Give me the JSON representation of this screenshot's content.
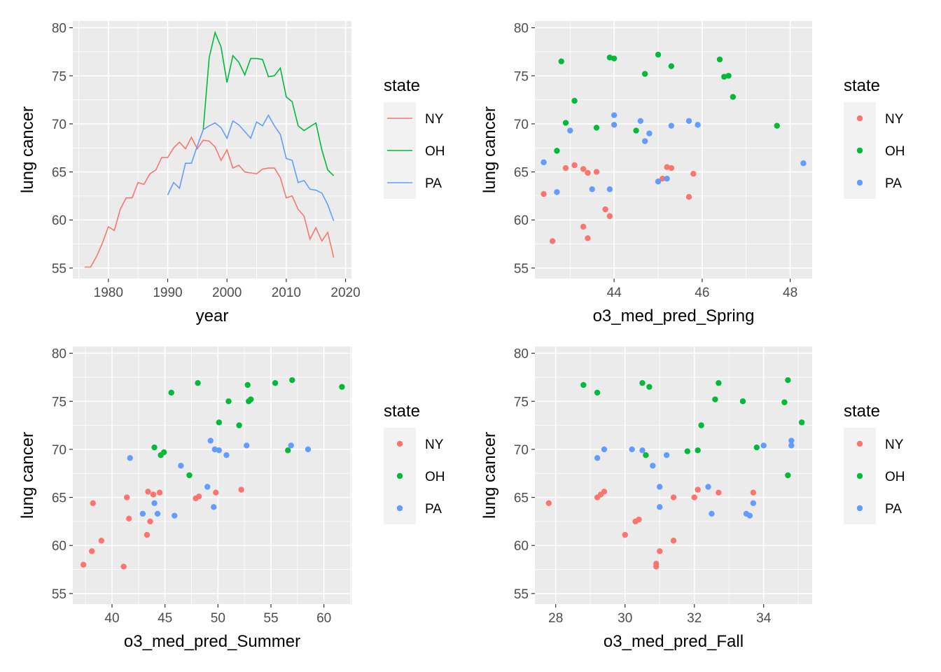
{
  "chart_data": [
    {
      "type": "line",
      "xlabel": "year",
      "ylabel": "lung cancer",
      "xlim": [
        1974,
        2021
      ],
      "ylim": [
        53.9,
        80.7
      ],
      "xticks": [
        1980,
        1990,
        2000,
        2010,
        2020
      ],
      "yticks": [
        55,
        60,
        65,
        70,
        75,
        80
      ],
      "legend_title": "state",
      "legend_placement": "right",
      "series": [
        {
          "name": "NY",
          "color": "#F8766D",
          "x": [
            1976,
            1977,
            1978,
            1979,
            1980,
            1981,
            1982,
            1983,
            1984,
            1985,
            1986,
            1987,
            1988,
            1989,
            1990,
            1991,
            1992,
            1993,
            1994,
            1995,
            1996,
            1997,
            1998,
            1999,
            2000,
            2001,
            2002,
            2003,
            2004,
            2005,
            2006,
            2007,
            2008,
            2009,
            2010,
            2011,
            2012,
            2013,
            2014,
            2015,
            2016,
            2017,
            2018
          ],
          "y": [
            55.1,
            55.1,
            56.2,
            57.6,
            59.3,
            58.9,
            61.1,
            62.3,
            62.3,
            63.9,
            63.7,
            64.8,
            65.2,
            66.5,
            66.5,
            67.5,
            68.1,
            67.4,
            68.6,
            67.4,
            68.3,
            68.2,
            67.6,
            66.2,
            67.3,
            65.4,
            65.7,
            65.0,
            64.9,
            64.8,
            65.3,
            65.4,
            65.4,
            64.4,
            62.3,
            62.5,
            61.1,
            60.4,
            58.0,
            59.2,
            57.8,
            58.7,
            56.1
          ]
        },
        {
          "name": "OH",
          "color": "#00BA38",
          "x": [
            1996,
            1997,
            1998,
            1999,
            2000,
            2001,
            2002,
            2003,
            2004,
            2005,
            2006,
            2007,
            2008,
            2009,
            2010,
            2011,
            2012,
            2013,
            2014,
            2015,
            2016,
            2017,
            2018
          ],
          "y": [
            69.4,
            76.9,
            79.5,
            78.0,
            74.3,
            77.1,
            76.4,
            75.1,
            76.8,
            76.8,
            76.7,
            74.9,
            75.0,
            75.8,
            72.8,
            72.3,
            69.8,
            69.3,
            69.7,
            70.1,
            67.3,
            65.2,
            64.6
          ]
        },
        {
          "name": "PA",
          "color": "#619CFF",
          "x": [
            1990,
            1991,
            1992,
            1993,
            1994,
            1995,
            1996,
            1997,
            1998,
            1999,
            2000,
            2001,
            2002,
            2003,
            2004,
            2005,
            2006,
            2007,
            2008,
            2009,
            2010,
            2011,
            2012,
            2013,
            2014,
            2015,
            2016,
            2017,
            2018
          ],
          "y": [
            62.6,
            63.9,
            63.3,
            65.9,
            65.9,
            67.7,
            69.4,
            69.8,
            70.1,
            69.6,
            68.5,
            70.3,
            69.9,
            69.2,
            68.5,
            70.2,
            69.8,
            70.9,
            69.8,
            68.9,
            66.4,
            66.2,
            63.9,
            64.1,
            63.2,
            63.1,
            62.8,
            61.6,
            59.9
          ]
        }
      ]
    },
    {
      "type": "scatter",
      "xlabel": "o3_med_pred_Spring",
      "ylabel": "lung cancer",
      "xlim": [
        42.2,
        48.5
      ],
      "ylim": [
        53.9,
        80.7
      ],
      "xticks": [
        44,
        46,
        48
      ],
      "yticks": [
        55,
        60,
        65,
        70,
        75,
        80
      ],
      "legend_title": "state",
      "legend_placement": "right",
      "series": [
        {
          "name": "NY",
          "color": "#F8766D",
          "points": [
            [
              42.4,
              62.7
            ],
            [
              42.6,
              57.8
            ],
            [
              42.9,
              65.4
            ],
            [
              43.1,
              65.7
            ],
            [
              43.3,
              65.3
            ],
            [
              43.3,
              59.3
            ],
            [
              43.4,
              58.1
            ],
            [
              43.4,
              64.9
            ],
            [
              43.6,
              65.0
            ],
            [
              43.8,
              61.1
            ],
            [
              43.9,
              60.4
            ],
            [
              45.0,
              64.0
            ],
            [
              45.1,
              64.3
            ],
            [
              45.2,
              65.5
            ],
            [
              45.3,
              65.4
            ],
            [
              45.7,
              62.4
            ],
            [
              45.8,
              64.8
            ]
          ]
        },
        {
          "name": "OH",
          "color": "#00BA38",
          "points": [
            [
              42.7,
              67.2
            ],
            [
              42.8,
              76.5
            ],
            [
              42.9,
              70.1
            ],
            [
              43.1,
              72.4
            ],
            [
              43.6,
              69.6
            ],
            [
              43.9,
              76.9
            ],
            [
              44.0,
              76.8
            ],
            [
              44.5,
              69.3
            ],
            [
              44.7,
              75.2
            ],
            [
              45.0,
              77.2
            ],
            [
              45.3,
              76.0
            ],
            [
              46.4,
              76.7
            ],
            [
              46.5,
              74.9
            ],
            [
              46.6,
              75.0
            ],
            [
              46.7,
              72.8
            ],
            [
              47.7,
              69.8
            ]
          ]
        },
        {
          "name": "PA",
          "color": "#619CFF",
          "points": [
            [
              42.4,
              66.0
            ],
            [
              42.7,
              62.9
            ],
            [
              43.0,
              69.3
            ],
            [
              43.5,
              63.2
            ],
            [
              43.9,
              63.2
            ],
            [
              44.0,
              69.9
            ],
            [
              44.0,
              70.9
            ],
            [
              44.6,
              70.3
            ],
            [
              44.7,
              68.2
            ],
            [
              44.8,
              69.0
            ],
            [
              45.0,
              64.0
            ],
            [
              45.2,
              64.3
            ],
            [
              45.3,
              69.8
            ],
            [
              45.7,
              70.3
            ],
            [
              45.9,
              69.9
            ],
            [
              48.3,
              65.9
            ]
          ]
        }
      ]
    },
    {
      "type": "scatter",
      "xlabel": "o3_med_pred_Summer",
      "ylabel": "lung cancer",
      "xlim": [
        36.3,
        62.6
      ],
      "ylim": [
        53.9,
        80.7
      ],
      "xticks": [
        40,
        45,
        50,
        55,
        60
      ],
      "yticks": [
        55,
        60,
        65,
        70,
        75,
        80
      ],
      "legend_title": "state",
      "legend_placement": "right",
      "series": [
        {
          "name": "NY",
          "color": "#F8766D",
          "points": [
            [
              37.3,
              58.0
            ],
            [
              38.1,
              59.4
            ],
            [
              38.2,
              64.4
            ],
            [
              39.0,
              60.5
            ],
            [
              41.1,
              57.8
            ],
            [
              41.4,
              65.0
            ],
            [
              41.6,
              62.8
            ],
            [
              43.3,
              61.1
            ],
            [
              43.4,
              65.6
            ],
            [
              43.6,
              62.5
            ],
            [
              43.9,
              65.3
            ],
            [
              44.5,
              65.5
            ],
            [
              47.9,
              64.9
            ],
            [
              48.2,
              65.1
            ],
            [
              49.8,
              65.5
            ],
            [
              52.2,
              65.8
            ]
          ]
        },
        {
          "name": "OH",
          "color": "#00BA38",
          "points": [
            [
              44.0,
              70.2
            ],
            [
              44.6,
              69.4
            ],
            [
              44.9,
              69.7
            ],
            [
              45.6,
              75.9
            ],
            [
              47.3,
              67.3
            ],
            [
              48.1,
              76.9
            ],
            [
              50.1,
              72.8
            ],
            [
              51.0,
              75.0
            ],
            [
              52.0,
              72.5
            ],
            [
              52.8,
              76.7
            ],
            [
              52.9,
              75.0
            ],
            [
              53.1,
              75.2
            ],
            [
              55.4,
              76.9
            ],
            [
              56.6,
              69.9
            ],
            [
              57.0,
              77.2
            ],
            [
              61.7,
              76.5
            ]
          ]
        },
        {
          "name": "PA",
          "color": "#619CFF",
          "points": [
            [
              41.7,
              69.1
            ],
            [
              42.9,
              63.3
            ],
            [
              44.0,
              64.4
            ],
            [
              44.3,
              63.3
            ],
            [
              45.9,
              63.1
            ],
            [
              46.5,
              68.3
            ],
            [
              49.0,
              66.1
            ],
            [
              49.3,
              70.9
            ],
            [
              49.6,
              64.0
            ],
            [
              49.7,
              70.0
            ],
            [
              50.1,
              69.9
            ],
            [
              50.8,
              69.4
            ],
            [
              52.7,
              70.4
            ],
            [
              56.9,
              70.4
            ],
            [
              58.5,
              70.0
            ]
          ]
        }
      ]
    },
    {
      "type": "scatter",
      "xlabel": "o3_med_pred_Fall",
      "ylabel": "lung cancer",
      "xlim": [
        27.4,
        35.4
      ],
      "ylim": [
        53.9,
        80.7
      ],
      "xticks": [
        28,
        30,
        32,
        34
      ],
      "yticks": [
        55,
        60,
        65,
        70,
        75,
        80
      ],
      "legend_title": "state",
      "legend_placement": "right",
      "series": [
        {
          "name": "NY",
          "color": "#F8766D",
          "points": [
            [
              27.8,
              64.4
            ],
            [
              29.2,
              65.0
            ],
            [
              29.3,
              65.3
            ],
            [
              29.4,
              65.6
            ],
            [
              30.0,
              61.1
            ],
            [
              30.3,
              62.5
            ],
            [
              30.4,
              62.7
            ],
            [
              30.9,
              57.8
            ],
            [
              30.9,
              58.1
            ],
            [
              31.0,
              59.4
            ],
            [
              31.4,
              60.5
            ],
            [
              31.4,
              65.0
            ],
            [
              32.0,
              65.0
            ],
            [
              32.1,
              65.8
            ],
            [
              32.7,
              65.5
            ],
            [
              33.7,
              65.5
            ]
          ]
        },
        {
          "name": "OH",
          "color": "#00BA38",
          "points": [
            [
              28.8,
              76.7
            ],
            [
              29.2,
              75.9
            ],
            [
              30.5,
              76.9
            ],
            [
              30.6,
              69.4
            ],
            [
              30.7,
              76.5
            ],
            [
              31.8,
              69.8
            ],
            [
              32.1,
              69.9
            ],
            [
              32.2,
              72.5
            ],
            [
              32.6,
              75.2
            ],
            [
              32.7,
              76.9
            ],
            [
              33.4,
              75.0
            ],
            [
              33.8,
              70.2
            ],
            [
              34.6,
              74.9
            ],
            [
              34.7,
              67.3
            ],
            [
              34.7,
              77.2
            ],
            [
              35.1,
              72.8
            ]
          ]
        },
        {
          "name": "PA",
          "color": "#619CFF",
          "points": [
            [
              29.2,
              69.1
            ],
            [
              29.4,
              70.0
            ],
            [
              30.2,
              70.0
            ],
            [
              30.5,
              69.9
            ],
            [
              30.8,
              68.3
            ],
            [
              31.0,
              66.1
            ],
            [
              31.0,
              64.0
            ],
            [
              31.2,
              69.4
            ],
            [
              32.4,
              66.1
            ],
            [
              32.5,
              63.3
            ],
            [
              33.5,
              63.3
            ],
            [
              33.6,
              63.1
            ],
            [
              33.7,
              64.4
            ],
            [
              34.0,
              70.4
            ],
            [
              34.8,
              70.9
            ],
            [
              34.8,
              70.4
            ]
          ]
        }
      ]
    }
  ]
}
